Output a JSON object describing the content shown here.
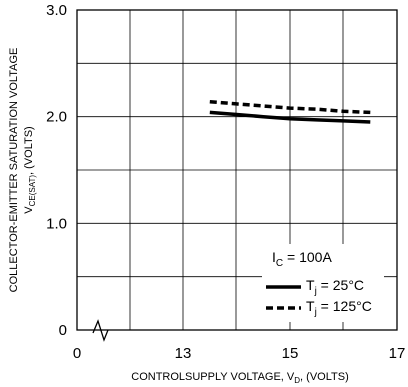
{
  "chart_data": {
    "type": "line",
    "xlabel": {
      "prefix": "CONTROLSUPPLY VOLTAGE, V",
      "sub": "D",
      "suffix": ", (VOLTS)"
    },
    "ylabel": {
      "line1": "COLLECTOR-EMITTER SATURATION VOLTAGE",
      "prefix": "V",
      "sub": "CE(SAT)",
      "suffix": ", (VOLTS)"
    },
    "x_break": true,
    "x_ticks": [
      {
        "value": 0,
        "label": "0"
      },
      {
        "value": 13,
        "label": "13"
      },
      {
        "value": 15,
        "label": "15"
      },
      {
        "value": 17,
        "label": "17"
      }
    ],
    "y_ticks": [
      {
        "value": 0,
        "label": "0"
      },
      {
        "value": 1.0,
        "label": "1.0"
      },
      {
        "value": 2.0,
        "label": "2.0"
      },
      {
        "value": 3.0,
        "label": "3.0"
      }
    ],
    "ylim": [
      0,
      3.0
    ],
    "grid": true,
    "legend_position": "bottom-right",
    "legend": {
      "condition_prefix": "I",
      "condition_sub": "C",
      "condition_suffix": " = 100A"
    },
    "series": [
      {
        "name_prefix": "T",
        "name_sub": "j",
        "name_suffix": " = 25°C",
        "style": "solid",
        "x": [
          13.5,
          14.0,
          14.5,
          15.0,
          15.5,
          16.0,
          16.5
        ],
        "y": [
          2.04,
          2.02,
          2.0,
          1.98,
          1.97,
          1.96,
          1.95
        ]
      },
      {
        "name_prefix": "T",
        "name_sub": "j",
        "name_suffix": " = 125°C",
        "style": "dashed",
        "x": [
          13.5,
          14.0,
          14.5,
          15.0,
          15.5,
          16.0,
          16.5
        ],
        "y": [
          2.14,
          2.12,
          2.1,
          2.08,
          2.07,
          2.05,
          2.04
        ]
      }
    ]
  }
}
